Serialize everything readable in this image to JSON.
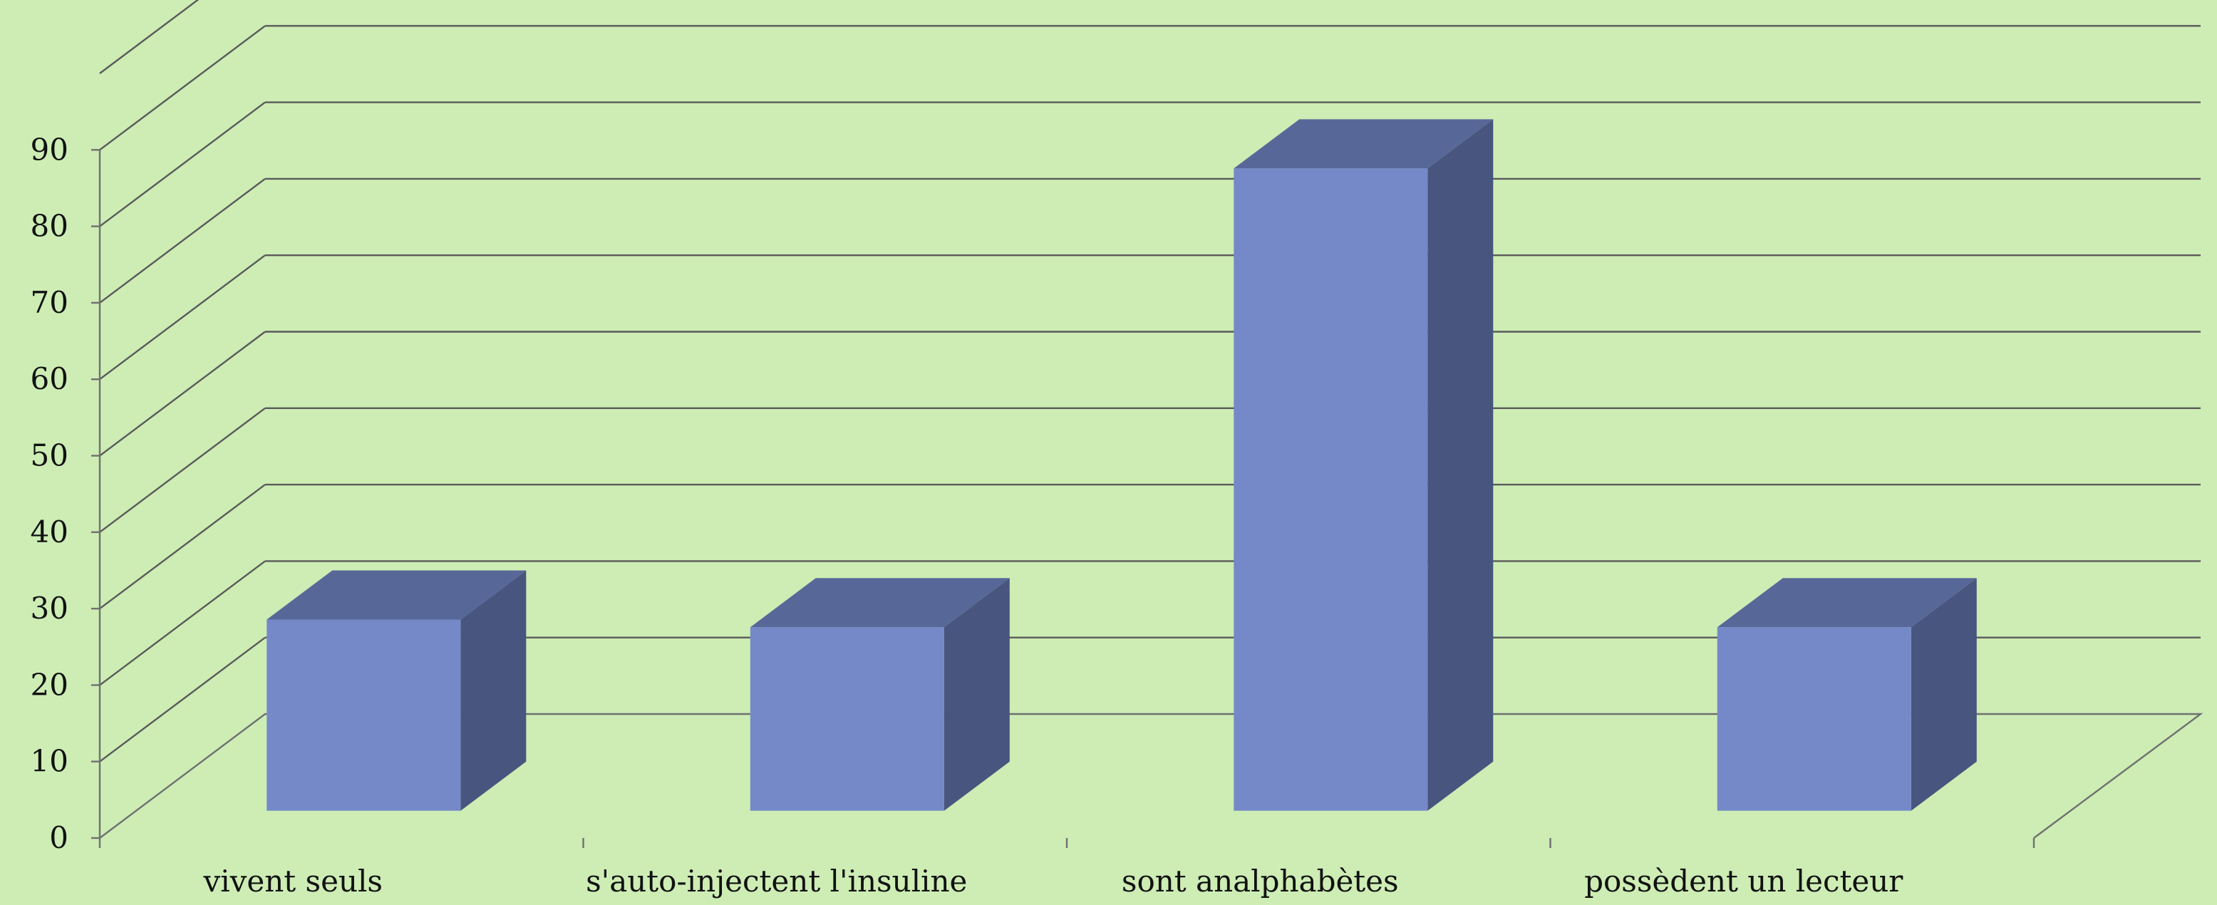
{
  "chart_data": {
    "type": "bar",
    "title": "",
    "xlabel": "",
    "ylabel": "",
    "categories": [
      "vivent seuls",
      "s'auto-injectent l'insuline",
      "sont analphabètes",
      "possèdent un lecteur"
    ],
    "values": [
      25,
      24,
      84,
      24
    ],
    "ylim": [
      0,
      100
    ],
    "yticks": [
      0,
      10,
      20,
      30,
      40,
      50,
      60,
      70,
      80,
      90
    ],
    "grid": true,
    "legend": "none",
    "style": "3d-column",
    "colors": {
      "background": "#cdedb4",
      "bar_front": "#7589c9",
      "bar_top": "#576898",
      "bar_side": "#48557f"
    }
  }
}
